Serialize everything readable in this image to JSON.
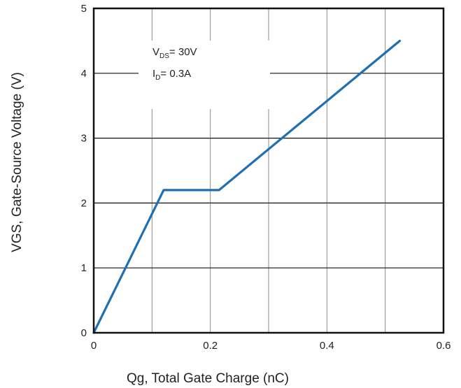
{
  "chart_data": {
    "type": "line",
    "title": "",
    "xlabel": "Qg, Total Gate Charge (nC)",
    "ylabel": "VGS, Gate-Source Voltage (V)",
    "xlim": [
      0,
      0.6
    ],
    "ylim": [
      0,
      5
    ],
    "x_ticks": [
      "0",
      "0.2",
      "0.4",
      "0.6"
    ],
    "y_ticks": [
      "0",
      "1",
      "2",
      "3",
      "4",
      "5"
    ],
    "grid": true,
    "series": [
      {
        "name": "",
        "color": "#1f6fb2",
        "x": [
          0.0,
          0.12,
          0.215,
          0.525
        ],
        "y": [
          0.0,
          2.2,
          2.2,
          4.5
        ]
      }
    ],
    "annotations": [
      {
        "main": "V",
        "sub": "DS",
        "rest": "= 30V"
      },
      {
        "main": "I",
        "sub": "D",
        "rest": "= 0.3A"
      }
    ]
  }
}
